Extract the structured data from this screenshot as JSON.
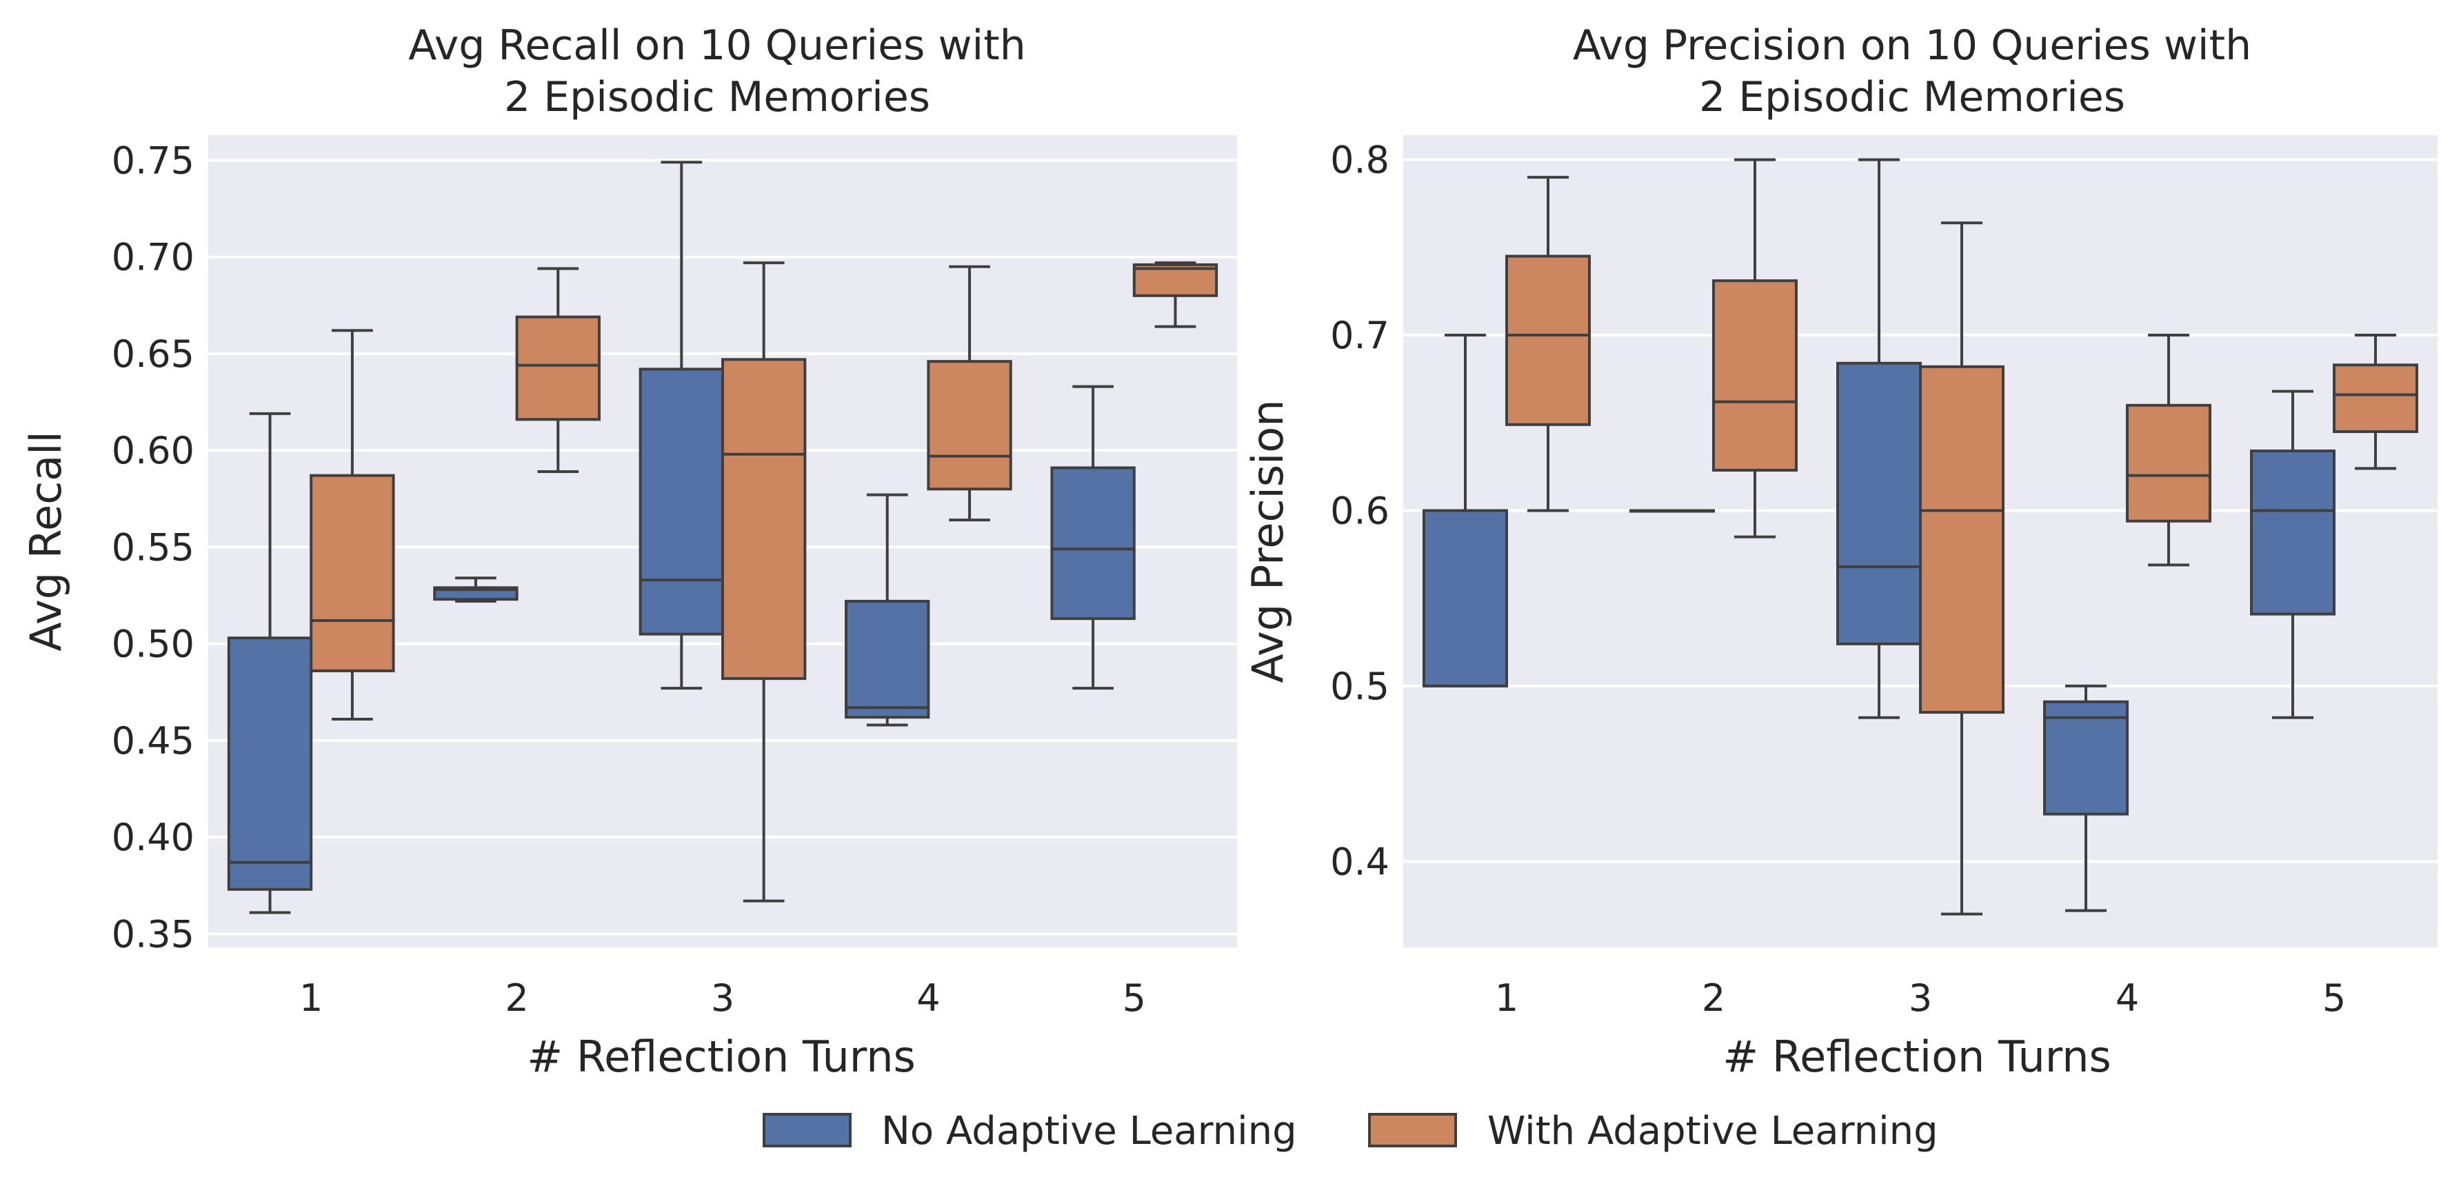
{
  "colors": {
    "no_adaptive": "#5572a6",
    "with_adaptive": "#cc8760",
    "panel_background": "#eaeaf2",
    "grid": "#ffffff",
    "line": "#3f3f3f"
  },
  "legend": [
    {
      "label": "No Adaptive Learning",
      "color": "#5572a6"
    },
    {
      "label": "With Adaptive Learning",
      "color": "#cc8760"
    }
  ],
  "chart_data": [
    {
      "type": "box",
      "title": [
        "Avg Recall on 10 Queries with",
        "2 Episodic Memories"
      ],
      "xlabel": "# Reflection Turns",
      "ylabel": "Avg Recall",
      "categories": [
        "1",
        "2",
        "3",
        "4",
        "5"
      ],
      "ylim": [
        0.343,
        0.763
      ],
      "yticks": [
        0.35,
        0.4,
        0.45,
        0.5,
        0.55,
        0.6,
        0.65,
        0.7,
        0.75
      ],
      "ytick_labels": [
        "0.35",
        "0.40",
        "0.45",
        "0.50",
        "0.55",
        "0.60",
        "0.65",
        "0.70",
        "0.75"
      ],
      "grid": true,
      "series": [
        {
          "name": "No Adaptive Learning",
          "boxes": [
            {
              "whislo": 0.361,
              "q1": 0.373,
              "med": 0.387,
              "q3": 0.503,
              "whishi": 0.619
            },
            {
              "whislo": 0.522,
              "q1": 0.523,
              "med": 0.528,
              "q3": 0.529,
              "whishi": 0.534
            },
            {
              "whislo": 0.477,
              "q1": 0.505,
              "med": 0.533,
              "q3": 0.642,
              "whishi": 0.749
            },
            {
              "whislo": 0.458,
              "q1": 0.462,
              "med": 0.467,
              "q3": 0.522,
              "whishi": 0.577
            },
            {
              "whislo": 0.477,
              "q1": 0.513,
              "med": 0.549,
              "q3": 0.591,
              "whishi": 0.633
            }
          ]
        },
        {
          "name": "With Adaptive Learning",
          "boxes": [
            {
              "whislo": 0.461,
              "q1": 0.486,
              "med": 0.512,
              "q3": 0.587,
              "whishi": 0.662
            },
            {
              "whislo": 0.589,
              "q1": 0.616,
              "med": 0.644,
              "q3": 0.669,
              "whishi": 0.694
            },
            {
              "whislo": 0.367,
              "q1": 0.482,
              "med": 0.598,
              "q3": 0.647,
              "whishi": 0.697
            },
            {
              "whislo": 0.564,
              "q1": 0.58,
              "med": 0.597,
              "q3": 0.646,
              "whishi": 0.695
            },
            {
              "whislo": 0.664,
              "q1": 0.68,
              "med": 0.694,
              "q3": 0.696,
              "whishi": 0.697
            }
          ]
        }
      ]
    },
    {
      "type": "box",
      "title": [
        "Avg Precision on 10 Queries with",
        "2 Episodic Memories"
      ],
      "xlabel": "# Reflection Turns",
      "ylabel": "Avg Precision",
      "categories": [
        "1",
        "2",
        "3",
        "4",
        "5"
      ],
      "ylim": [
        0.351,
        0.814
      ],
      "yticks": [
        0.4,
        0.5,
        0.6,
        0.7,
        0.8
      ],
      "ytick_labels": [
        "0.4",
        "0.5",
        "0.6",
        "0.7",
        "0.8"
      ],
      "grid": true,
      "series": [
        {
          "name": "No Adaptive Learning",
          "boxes": [
            {
              "whislo": 0.5,
              "q1": 0.5,
              "med": 0.5,
              "q3": 0.6,
              "whishi": 0.7
            },
            {
              "whislo": 0.6,
              "q1": 0.6,
              "med": 0.6,
              "q3": 0.6,
              "whishi": 0.6
            },
            {
              "whislo": 0.482,
              "q1": 0.524,
              "med": 0.568,
              "q3": 0.684,
              "whishi": 0.8
            },
            {
              "whislo": 0.372,
              "q1": 0.427,
              "med": 0.482,
              "q3": 0.491,
              "whishi": 0.5
            },
            {
              "whislo": 0.482,
              "q1": 0.541,
              "med": 0.6,
              "q3": 0.634,
              "whishi": 0.668
            }
          ]
        },
        {
          "name": "With Adaptive Learning",
          "boxes": [
            {
              "whislo": 0.6,
              "q1": 0.649,
              "med": 0.7,
              "q3": 0.745,
              "whishi": 0.79
            },
            {
              "whislo": 0.585,
              "q1": 0.623,
              "med": 0.662,
              "q3": 0.731,
              "whishi": 0.8
            },
            {
              "whislo": 0.37,
              "q1": 0.485,
              "med": 0.6,
              "q3": 0.682,
              "whishi": 0.764
            },
            {
              "whislo": 0.569,
              "q1": 0.594,
              "med": 0.62,
              "q3": 0.66,
              "whishi": 0.7
            },
            {
              "whislo": 0.624,
              "q1": 0.645,
              "med": 0.666,
              "q3": 0.683,
              "whishi": 0.7
            }
          ]
        }
      ]
    }
  ]
}
